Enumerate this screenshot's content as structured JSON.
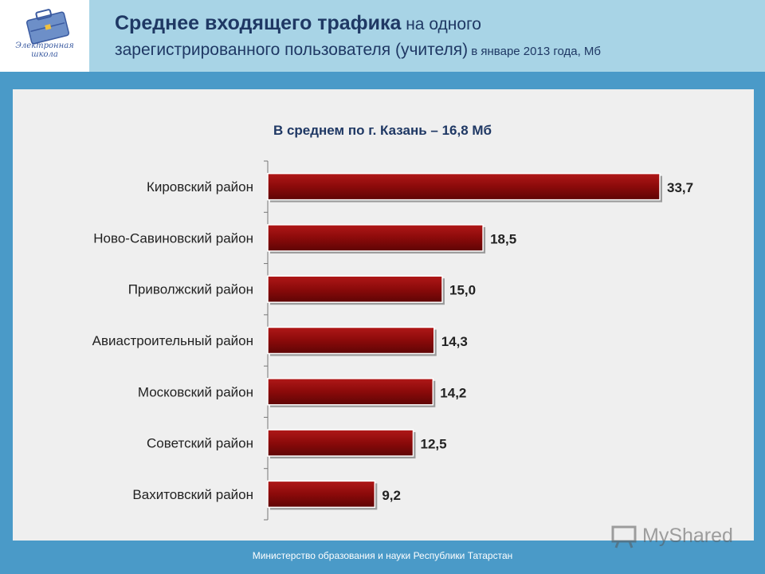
{
  "header": {
    "title_bold": "Среднее входящего трафика",
    "title_rest": " на одного",
    "title_line2": "зарегистрированного пользователя (учителя)",
    "title_small": " в январе 2013 года, Мб",
    "logo_text": "Электронная школа"
  },
  "average_note": "В среднем по г. Казань – 16,8 Мб",
  "chart_data": {
    "type": "bar",
    "orientation": "horizontal",
    "title": "",
    "categories": [
      "Кировский район",
      "Ново-Савиновский район",
      "Приволжский район",
      "Авиастроительный район",
      "Московский район",
      "Советский район",
      "Вахитовский район"
    ],
    "values": [
      33.7,
      18.5,
      15.0,
      14.3,
      14.2,
      12.5,
      9.2
    ],
    "value_labels": [
      "33,7",
      "18,5",
      "15,0",
      "14,3",
      "14,2",
      "12,5",
      "9,2"
    ],
    "xlim": [
      0,
      33.7
    ],
    "bar_color": "#8b0a0a",
    "grid": false
  },
  "footer": "Министерство образования и науки Республики Татарстан",
  "watermark": "MyShared"
}
